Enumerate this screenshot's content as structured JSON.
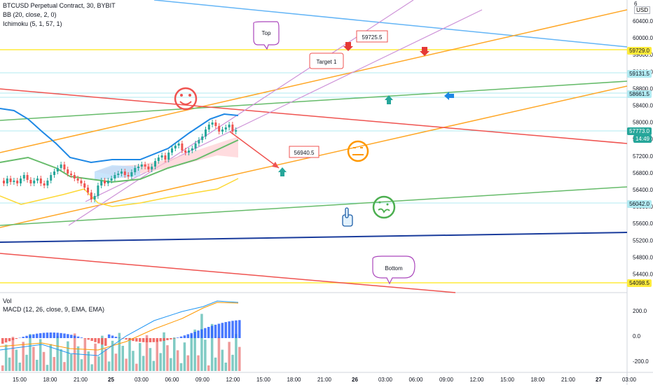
{
  "header": {
    "symbol_line": "BTCUSD Perpetual Contract, 30, BYBIT",
    "bb_line": "BB (20, close, 2, 0)",
    "ichimoku_line": "Ichimoku (5, 1, 57, 1)",
    "currency": "USD"
  },
  "price_axis": {
    "ticks": [
      "60400.0",
      "60000.0",
      "59600.0",
      "59200.0",
      "58800.0",
      "58400.0",
      "58000.0",
      "57600.0",
      "57200.0",
      "56800.0",
      "56400.0",
      "56000.0",
      "55600.0",
      "55200.0",
      "54800.0",
      "54400.0"
    ],
    "top_partial": "6"
  },
  "price_tags": [
    {
      "label": "59729.0",
      "color": "#ffeb3b"
    },
    {
      "label": "59131.5",
      "color": "#b2ebf2"
    },
    {
      "label": "58661.5",
      "color": "#b2ebf2"
    },
    {
      "label": "57773.0",
      "color": "#26a69a"
    },
    {
      "label": "14:49",
      "color": "#26a69a"
    },
    {
      "label": "56042.0",
      "color": "#b2ebf2"
    },
    {
      "label": "54098.5",
      "color": "#ffeb3b"
    }
  ],
  "indicator_pane": {
    "vol_label": "Vol",
    "macd_label": "MACD (12, 26, close, 9, EMA, EMA)",
    "ticks": [
      "200.0",
      "0.0",
      "-200.0"
    ]
  },
  "time_axis": [
    "15:00",
    "18:00",
    "21:00",
    "25",
    "03:00",
    "06:00",
    "09:00",
    "12:00",
    "15:00",
    "18:00",
    "21:00",
    "26",
    "03:00",
    "06:00",
    "09:00",
    "12:00",
    "15:00",
    "18:00",
    "21:00",
    "27",
    "03:00"
  ],
  "annotations": {
    "top": "Top",
    "target": "Target 1",
    "bottom": "Bottom",
    "price_59725": "59725.5",
    "price_56940": "56940.5"
  },
  "colors": {
    "up": "#26a69a",
    "down": "#ef5350",
    "yellow_line": "#ffeb3b",
    "orange_line": "#ff9800",
    "green_line": "#4caf50",
    "red_line": "#f44336",
    "blue_line": "#2196f3",
    "navy_line": "#1a3c9c",
    "purple_line": "#ce93d8",
    "cyan_line": "#b2ebf2"
  },
  "icons": [
    "smiley-face-icon",
    "neutral-face-icon",
    "sick-face-icon",
    "arrow-down-icon",
    "arrow-up-icon",
    "arrow-left-icon",
    "pointing-hand-icon"
  ]
}
